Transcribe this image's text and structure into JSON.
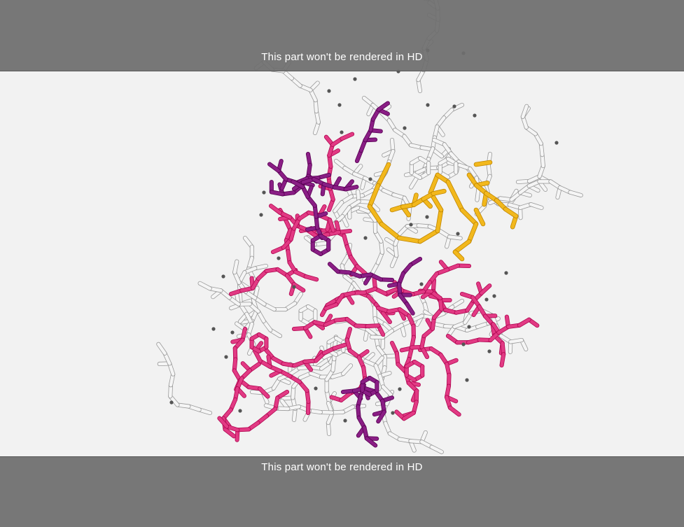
{
  "overlay": {
    "top_notice": "This part won't be rendered in HD",
    "bottom_notice": "This part won't be rendered in HD"
  },
  "molecule": {
    "style": "sticks",
    "colors": {
      "background": "#f2f2f2",
      "backbone": "#f5f5f5",
      "outline": "#9a9a9a",
      "magenta": "#e23a84",
      "purple": "#8a1e85",
      "gold": "#f2b81d",
      "water": "#555555"
    }
  }
}
